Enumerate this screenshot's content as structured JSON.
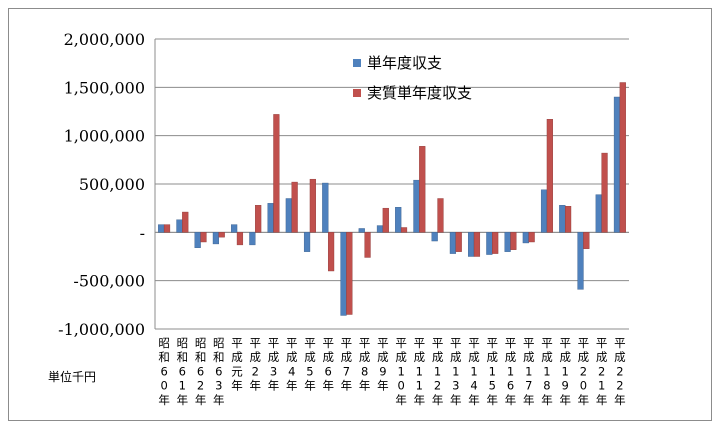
{
  "chart_data": {
    "type": "bar",
    "categories": [
      "昭和60年",
      "昭和61年",
      "昭和62年",
      "昭和63年",
      "平成元年",
      "平成2年",
      "平成3年",
      "平成4年",
      "平成5年",
      "平成6年",
      "平成7年",
      "平成8年",
      "平成9年",
      "平成10年",
      "平成11年",
      "平成12年",
      "平成13年",
      "平成14年",
      "平成15年",
      "平成16年",
      "平成17年",
      "平成18年",
      "平成19年",
      "平成20年",
      "平成21年",
      "平成22年"
    ],
    "series": [
      {
        "name": "単年度収支",
        "color": "#4f81bd",
        "values": [
          80000,
          130000,
          -160000,
          -120000,
          80000,
          -130000,
          300000,
          350000,
          -200000,
          510000,
          -860000,
          40000,
          70000,
          260000,
          540000,
          -90000,
          -220000,
          -250000,
          -230000,
          -200000,
          -110000,
          440000,
          280000,
          -590000,
          390000,
          1400000
        ]
      },
      {
        "name": "実質単年度収支",
        "color": "#c0504d",
        "values": [
          80000,
          210000,
          -100000,
          -50000,
          -130000,
          280000,
          1220000,
          520000,
          550000,
          -400000,
          -850000,
          -260000,
          250000,
          50000,
          890000,
          350000,
          -200000,
          -250000,
          -220000,
          -180000,
          -100000,
          1170000,
          270000,
          -170000,
          820000,
          1550000
        ]
      }
    ],
    "yticks": [
      "2,000,000",
      "1,500,000",
      "1,000,000",
      "500,000",
      "-",
      "-500,000",
      "-1,000,000"
    ],
    "ylim": [
      -1000000,
      2000000
    ],
    "grid": true,
    "legend": "top-center",
    "unit_label": "単位千円"
  }
}
